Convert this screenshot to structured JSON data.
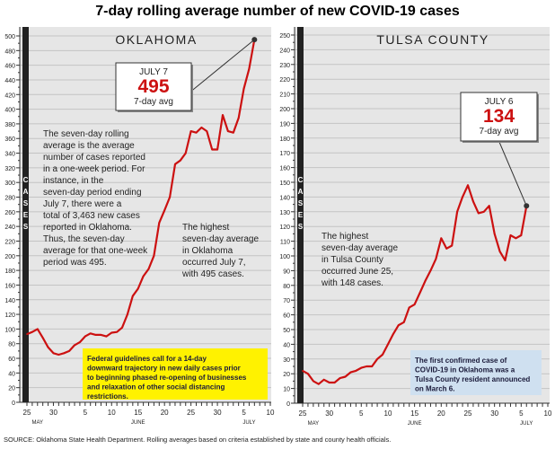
{
  "title": "7-day rolling average number of new COVID-19 cases",
  "source": "SOURCE: Oklahoma State Health Department. Rolling averages based on criteria established by state and county health officials.",
  "chart_data": [
    {
      "type": "line",
      "title": "OKLAHOMA",
      "ylabel": "CASES",
      "ylim": [
        0,
        500
      ],
      "yticks": [
        0,
        20,
        40,
        60,
        80,
        100,
        120,
        140,
        160,
        180,
        200,
        220,
        240,
        260,
        280,
        300,
        320,
        340,
        360,
        380,
        400,
        420,
        440,
        460,
        480,
        500
      ],
      "x_start": "2020-05-25",
      "xticks": [
        "25",
        "30",
        "5",
        "10",
        "15",
        "20",
        "25",
        "30",
        "5",
        "10"
      ],
      "months": [
        "MAY",
        "JUNE",
        "JULY"
      ],
      "grid": true,
      "color": "#cc1111",
      "values": [
        93,
        96,
        100,
        88,
        75,
        67,
        65,
        67,
        70,
        78,
        82,
        90,
        94,
        92,
        92,
        90,
        95,
        96,
        102,
        120,
        145,
        155,
        172,
        182,
        200,
        245,
        262,
        280,
        325,
        330,
        340,
        370,
        368,
        375,
        370,
        345,
        345,
        392,
        370,
        368,
        388,
        428,
        455,
        495
      ],
      "callout": {
        "date": "JULY 7",
        "value": "495",
        "label": "7-day avg"
      },
      "note": "The seven-day rolling average is the average number of cases reported in a one-week period. For instance, in the seven-day period ending July 7, there were a total of 3,463 new cases reported in Oklahoma. Thus, the seven-day average for that one-week period was 495.",
      "highest": "The highest seven-day average in Oklahoma occurred July 7, with 495 cases.",
      "box": "Federal guidelines call for a 14-day downward trajectory in new daily cases prior to beginning phased re-opening of businesses and relaxation of other social distancing restrictions.",
      "box_color": "#fff200"
    },
    {
      "type": "line",
      "title": "TULSA COUNTY",
      "ylabel": "CASES",
      "ylim": [
        0,
        250
      ],
      "yticks": [
        0,
        10,
        20,
        30,
        40,
        50,
        60,
        70,
        80,
        90,
        100,
        110,
        120,
        130,
        140,
        150,
        160,
        170,
        180,
        190,
        200,
        210,
        220,
        230,
        240,
        250
      ],
      "x_start": "2020-05-25",
      "xticks": [
        "25",
        "30",
        "5",
        "10",
        "15",
        "20",
        "25",
        "30",
        "5",
        "10"
      ],
      "months": [
        "MAY",
        "JUNE",
        "JULY"
      ],
      "grid": true,
      "color": "#cc1111",
      "values": [
        22,
        20,
        15,
        13,
        16,
        14,
        14,
        17,
        18,
        21,
        22,
        24,
        25,
        25,
        30,
        33,
        40,
        47,
        53,
        55,
        65,
        67,
        75,
        83,
        90,
        98,
        112,
        105,
        107,
        130,
        140,
        148,
        137,
        129,
        130,
        134,
        115,
        103,
        97,
        114,
        112,
        114,
        134
      ],
      "callout": {
        "date": "JULY 6",
        "value": "134",
        "label": "7-day avg"
      },
      "highest": "The highest seven-day average in Tulsa County occurred June 25, with 148 cases.",
      "box": "The first confirmed case of COVID-19 in Oklahoma was a Tulsa County resident announced on March 6.",
      "box_color": "#cfe0f0"
    }
  ]
}
